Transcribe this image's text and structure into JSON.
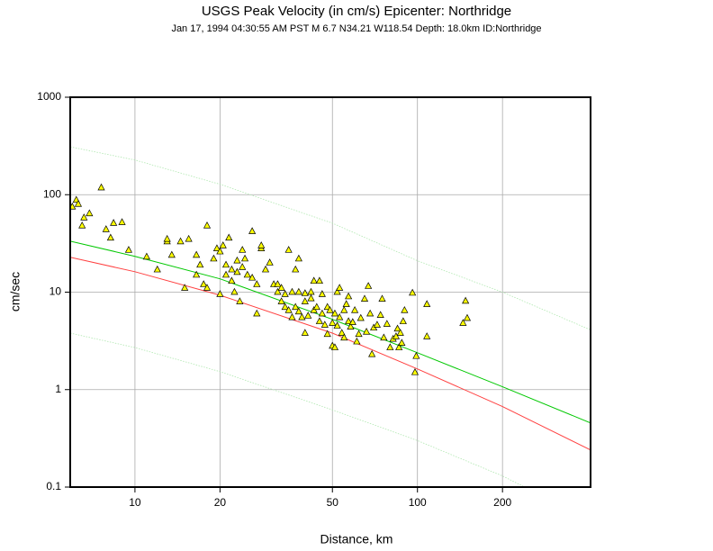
{
  "chart_data": {
    "type": "scatter",
    "title": "USGS Peak Velocity (in cm/s) Epicenter: Northridge",
    "subtitle": "Jan 17, 1994 04:30:55 AM PST   M 6.7   N34.21 W118.54   Depth: 18.0km   ID:Northridge",
    "x_label": "Distance, km",
    "y_label": "cm/sec",
    "xlim": [
      5.9,
      410
    ],
    "ylim": [
      0.1,
      1000
    ],
    "xticks": [
      10,
      20,
      50,
      100,
      200
    ],
    "yticks": [
      0.1,
      1,
      10,
      100,
      1000
    ],
    "x_log": true,
    "y_log": true,
    "grid": true,
    "series": [
      {
        "type": "scatter",
        "color": "#ffff00",
        "x": [
          6.0,
          6.2,
          6.3,
          6.5,
          6.6,
          6.9,
          7.6,
          7.9,
          8.2,
          8.4,
          9.0,
          9.5,
          11.0,
          12.0,
          13.0,
          13.0,
          13.5,
          14.5,
          15.0,
          15.5,
          16.5,
          16.5,
          17.0,
          17.5,
          18.0,
          18.0,
          19.0,
          19.5,
          20.0,
          20.0,
          20.5,
          21.0,
          21.0,
          21.5,
          22.0,
          22.0,
          22.5,
          23.0,
          23.0,
          23.5,
          24,
          24,
          24.5,
          25,
          26,
          26,
          27,
          27,
          28,
          28,
          29,
          30,
          31,
          32,
          32,
          33,
          33,
          34,
          34,
          35,
          35,
          36,
          36,
          37,
          37,
          38,
          38,
          38,
          39,
          40,
          40,
          40,
          41,
          42,
          42,
          43,
          43,
          44,
          45,
          45,
          46,
          46,
          47,
          48,
          48,
          49,
          50,
          50,
          51,
          51,
          52,
          52,
          53,
          53,
          54,
          55,
          55,
          56,
          57,
          57,
          58,
          59,
          60,
          61,
          62,
          63,
          65,
          66,
          67,
          68,
          69,
          70,
          72,
          74,
          75,
          76,
          78,
          80,
          82,
          84,
          85,
          86,
          87,
          88,
          89,
          90,
          96,
          98,
          99,
          108,
          108,
          145,
          148,
          150
        ],
        "values": [
          75,
          88,
          80,
          48,
          58,
          64,
          118,
          44,
          36,
          51,
          52,
          27,
          23,
          17,
          33,
          35,
          24,
          33,
          11,
          35,
          24,
          15,
          19,
          12,
          48,
          11,
          22,
          28,
          26,
          9.5,
          30,
          19,
          15,
          36,
          17,
          13,
          10,
          16,
          21,
          8,
          27,
          18,
          22,
          15,
          42,
          14,
          12,
          6,
          28,
          30,
          17,
          20,
          12,
          10,
          12,
          8,
          11,
          7,
          9.5,
          27,
          6.5,
          10,
          5.5,
          17,
          7,
          22,
          10,
          6.3,
          5.5,
          8,
          9.7,
          3.8,
          5.7,
          10,
          8.6,
          13,
          6.5,
          7,
          13,
          5,
          9.5,
          6,
          4.6,
          7,
          3.7,
          6.5,
          2.8,
          4.8,
          6,
          2.7,
          10,
          4.5,
          11,
          5.5,
          3.8,
          6.5,
          3.4,
          7.5,
          5,
          9,
          4.4,
          4.9,
          6.5,
          3.1,
          3.7,
          5.4,
          8.5,
          3.9,
          11.5,
          6,
          2.3,
          4.3,
          4.6,
          5.8,
          8.5,
          3.4,
          4.7,
          2.7,
          3.3,
          3.5,
          4.2,
          2.7,
          3.8,
          3,
          5,
          6.5,
          9.8,
          1.5,
          2.2,
          7.5,
          3.5,
          4.8,
          8.1,
          5.4
        ]
      },
      {
        "type": "line",
        "color": "#b0e8b0",
        "style": "dotted",
        "x": [
          5.9,
          10,
          20,
          50,
          100,
          200,
          410
        ],
        "values": [
          310,
          227,
          128,
          51,
          21,
          10,
          4.1
        ]
      },
      {
        "type": "line",
        "color": "#00c800",
        "style": "solid",
        "x": [
          5.9,
          10,
          20,
          50,
          100,
          200,
          410
        ],
        "values": [
          33.4,
          23.3,
          13.7,
          5.26,
          2.39,
          1.07,
          0.455
        ]
      },
      {
        "type": "line",
        "color": "#ff4040",
        "style": "solid",
        "x": [
          5.9,
          10,
          20,
          50,
          100,
          200,
          410
        ],
        "values": [
          22.8,
          16.2,
          9.3,
          3.8,
          1.63,
          0.67,
          0.24
        ]
      },
      {
        "type": "line",
        "color": "#b0e8b0",
        "style": "dotted",
        "x": [
          5.9,
          10,
          20,
          50,
          100,
          200,
          410
        ],
        "values": [
          3.8,
          2.7,
          1.53,
          0.62,
          0.3,
          0.13,
          0.046
        ]
      }
    ]
  }
}
